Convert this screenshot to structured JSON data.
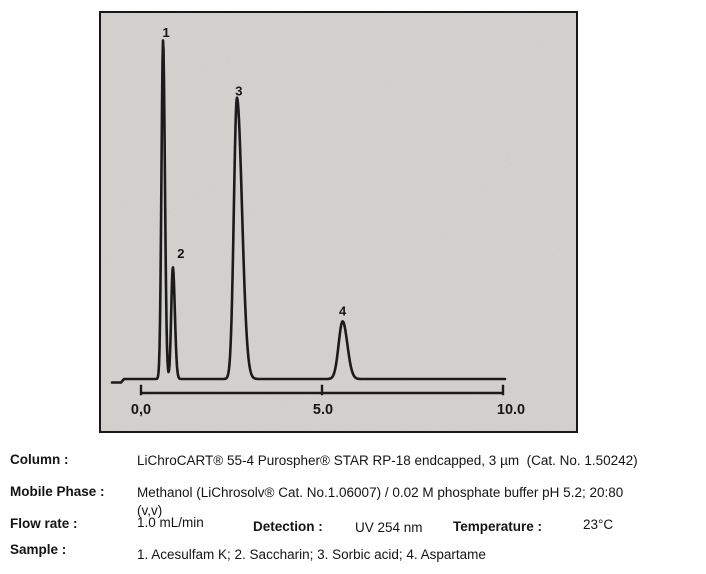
{
  "colors": {
    "trace": "#1b1b1b",
    "chart_background": "#ecebe8",
    "frame_border": "#181818",
    "text": "#141414"
  },
  "chart_data": {
    "type": "line",
    "subtype": "hplc-chromatogram",
    "title": "",
    "xlabel": "",
    "ylabel": "",
    "grid": false,
    "legend": "none",
    "x_axis": {
      "min": 0.0,
      "max": 10.0,
      "unit": "min",
      "ticks": [
        {
          "value": 0.0,
          "label": "0,0"
        },
        {
          "value": 5.0,
          "label": "5.0"
        },
        {
          "value": 10.0,
          "label": "10.0"
        }
      ]
    },
    "baseline_level": 0,
    "peaks": [
      {
        "label": "1",
        "compound": "Acesulfam K",
        "retention_time_min": 0.61,
        "relative_height": 1.0,
        "sigma_left_min": 0.045,
        "sigma_right_min": 0.05
      },
      {
        "label": "2",
        "compound": "Saccharin",
        "retention_time_min": 0.88,
        "relative_height": 0.33,
        "sigma_left_min": 0.045,
        "sigma_right_min": 0.055
      },
      {
        "label": "3",
        "compound": "Sorbic acid",
        "retention_time_min": 2.65,
        "relative_height": 0.83,
        "sigma_left_min": 0.085,
        "sigma_right_min": 0.14
      },
      {
        "label": "4",
        "compound": "Aspartame",
        "retention_time_min": 5.57,
        "relative_height": 0.17,
        "sigma_left_min": 0.11,
        "sigma_right_min": 0.13
      }
    ]
  },
  "details": {
    "column": {
      "label": "Column :",
      "value": "LiChroCART® 55-4 Purospher® STAR RP-18 endcapped, 3 µm  (Cat. No. 1.50242)"
    },
    "mobile_phase": {
      "label": "Mobile Phase :",
      "lines": [
        "Methanol (LiChrosolv® Cat. No.1.06007) / 0.02 M phosphate buffer pH 5.2; 20:80",
        "(v,v)"
      ]
    },
    "flow_rate": {
      "label": "Flow rate :",
      "value": "1.0 mL/min"
    },
    "detection": {
      "label": "Detection :",
      "value": "UV 254 nm"
    },
    "temperature": {
      "label": "Temperature :",
      "value": "23°C"
    },
    "sample": {
      "label": "Sample :",
      "value": "1. Acesulfam K; 2. Saccharin; 3. Sorbic acid; 4. Aspartame"
    }
  }
}
